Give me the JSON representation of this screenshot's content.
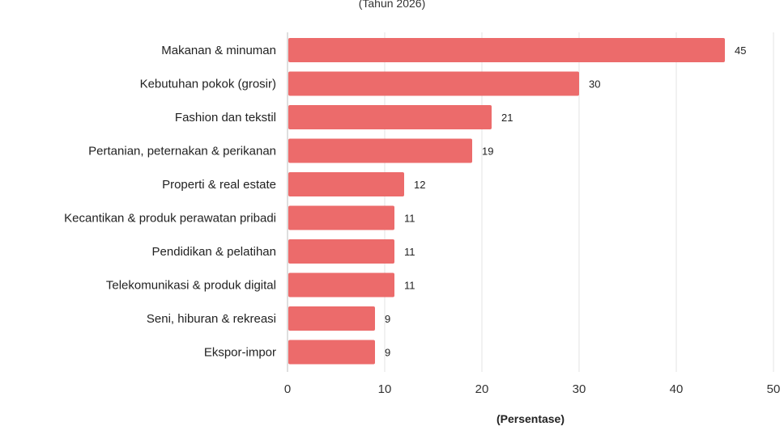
{
  "chart_data": {
    "type": "bar",
    "orientation": "horizontal",
    "subtitle": "(Tahun 2026)",
    "xlabel": "(Persentase)",
    "ylabel": "",
    "xlim": [
      0,
      50
    ],
    "xticks": [
      0,
      10,
      20,
      30,
      40,
      50
    ],
    "grid": true,
    "bar_color": "#ec6b6b",
    "categories": [
      "Makanan & minuman",
      "Kebutuhan pokok (grosir)",
      "Fashion dan tekstil",
      "Pertanian, peternakan & perikanan",
      "Properti & real estate",
      "Kecantikan & produk perawatan pribadi",
      "Pendidikan & pelatihan",
      "Telekomunikasi & produk digital",
      "Seni, hiburan & rekreasi",
      "Ekspor-impor"
    ],
    "values": [
      45,
      30,
      21,
      19,
      12,
      11,
      11,
      11,
      9,
      9
    ]
  }
}
